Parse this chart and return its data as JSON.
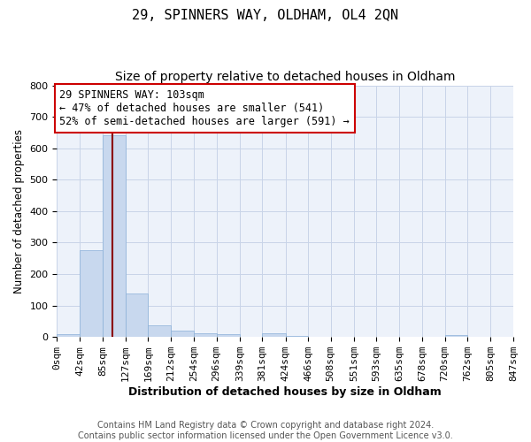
{
  "title": "29, SPINNERS WAY, OLDHAM, OL4 2QN",
  "subtitle": "Size of property relative to detached houses in Oldham",
  "xlabel": "Distribution of detached houses by size in Oldham",
  "ylabel": "Number of detached properties",
  "bin_edges": [
    0,
    42,
    85,
    127,
    169,
    212,
    254,
    296,
    339,
    381,
    424,
    466,
    508,
    551,
    593,
    635,
    678,
    720,
    762,
    805,
    847
  ],
  "bar_heights": [
    8,
    275,
    640,
    138,
    37,
    20,
    13,
    8,
    0,
    12,
    3,
    0,
    0,
    0,
    0,
    0,
    0,
    6,
    0,
    0
  ],
  "bar_color": "#c8d8ee",
  "bar_edgecolor": "#8ab0d8",
  "grid_color": "#c8d4e8",
  "background_color": "#edf2fa",
  "property_size": 103,
  "red_line_color": "#8b0000",
  "annotation_text": "29 SPINNERS WAY: 103sqm\n← 47% of detached houses are smaller (541)\n52% of semi-detached houses are larger (591) →",
  "annotation_box_color": "white",
  "annotation_box_edgecolor": "#cc0000",
  "ylim": [
    0,
    800
  ],
  "yticks": [
    0,
    100,
    200,
    300,
    400,
    500,
    600,
    700,
    800
  ],
  "footnote": "Contains HM Land Registry data © Crown copyright and database right 2024.\nContains public sector information licensed under the Open Government Licence v3.0.",
  "title_fontsize": 11,
  "subtitle_fontsize": 10,
  "xlabel_fontsize": 9,
  "ylabel_fontsize": 8.5,
  "tick_fontsize": 8,
  "annotation_fontsize": 8.5,
  "footnote_fontsize": 7
}
